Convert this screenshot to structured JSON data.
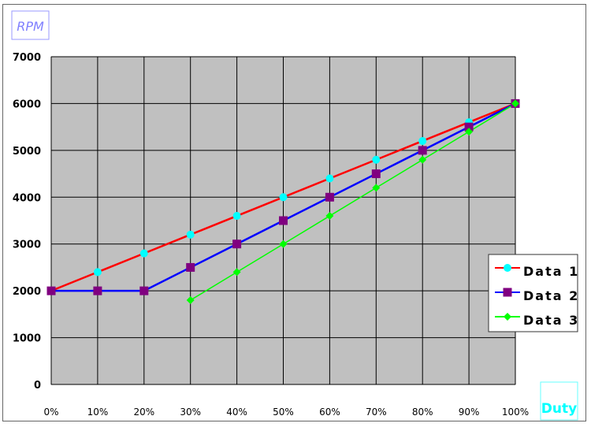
{
  "chart_data": {
    "type": "line",
    "ylabel": "RPM",
    "xlabel": "Duty",
    "categories": [
      "0%",
      "10%",
      "20%",
      "30%",
      "40%",
      "50%",
      "60%",
      "70%",
      "80%",
      "90%",
      "100%"
    ],
    "ylim": [
      0,
      7000
    ],
    "yticks": [
      "0",
      "1000",
      "2000",
      "3000",
      "4000",
      "5000",
      "6000",
      "7000"
    ],
    "grid": true,
    "legend": "right",
    "series": [
      {
        "name": "Data 1",
        "line_color": "#ff0000",
        "marker_color": "#00ffff",
        "marker": "circle",
        "values": [
          2000,
          2400,
          2800,
          3200,
          3600,
          4000,
          4400,
          4800,
          5200,
          5600,
          6000
        ]
      },
      {
        "name": "Data 2",
        "line_color": "#0000ff",
        "marker_color": "#800080",
        "marker": "square",
        "values": [
          2000,
          2000,
          2000,
          2500,
          3000,
          3500,
          4000,
          4500,
          5000,
          5500,
          6000
        ]
      },
      {
        "name": "Data 3",
        "line_color": "#00ff00",
        "marker_color": "#00ff00",
        "marker": "diamond",
        "values": [
          null,
          null,
          null,
          1800,
          2400,
          3000,
          3600,
          4200,
          4800,
          5400,
          6000
        ]
      }
    ],
    "plot_background": "#c0c0c0"
  }
}
